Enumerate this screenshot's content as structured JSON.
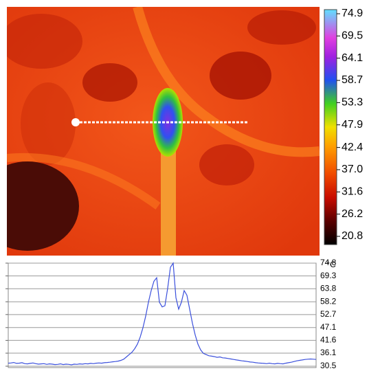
{
  "chart_data": [
    {
      "type": "colorbar",
      "unit": "°C",
      "ylim": [
        20.8,
        74.9
      ],
      "yticks": [
        74.9,
        69.5,
        64.1,
        58.7,
        53.3,
        47.9,
        42.4,
        {
          "value": 37,
          "label": "37.0"
        },
        31.6,
        26.2,
        20.8
      ]
    },
    {
      "type": "line",
      "color": "#3a4fdc",
      "grid": true,
      "ylim": [
        30.5,
        74.8
      ],
      "yticks": [
        74.8,
        69.3,
        63.8,
        58.2,
        52.7,
        47.1,
        41.6,
        36.1,
        30.5
      ],
      "values": [
        31.8,
        31.9,
        32.1,
        31.7,
        31.8,
        32.0,
        31.6,
        31.5,
        31.7,
        31.9,
        31.6,
        31.4,
        31.5,
        31.6,
        31.3,
        31.5,
        31.4,
        31.2,
        31.3,
        31.5,
        31.2,
        31.4,
        31.3,
        31.1,
        31.4,
        31.3,
        31.5,
        31.4,
        31.6,
        31.5,
        31.7,
        31.6,
        31.8,
        31.9,
        31.8,
        32.0,
        32.1,
        32.2,
        32.4,
        32.5,
        32.7,
        33,
        33.5,
        34.5,
        35.5,
        36.5,
        38,
        40,
        43,
        47,
        52,
        58,
        63,
        67,
        68.5,
        58,
        56,
        56.5,
        64,
        73,
        74.8,
        60,
        55,
        58,
        63,
        61,
        55,
        49,
        44,
        40,
        37.5,
        36,
        35.5,
        35,
        34.8,
        34.6,
        34.3,
        34.5,
        34.1,
        34.0,
        33.8,
        33.6,
        33.4,
        33.2,
        33.0,
        32.8,
        32.7,
        32.5,
        32.3,
        32.2,
        32.0,
        31.9,
        31.8,
        31.7,
        31.6,
        31.8,
        31.6,
        31.5,
        31.7,
        31.6,
        31.5,
        31.8,
        32.0,
        32.2,
        32.5,
        32.8,
        33.0,
        33.2,
        33.4,
        33.5,
        33.6,
        33.5,
        33.4
      ]
    }
  ]
}
